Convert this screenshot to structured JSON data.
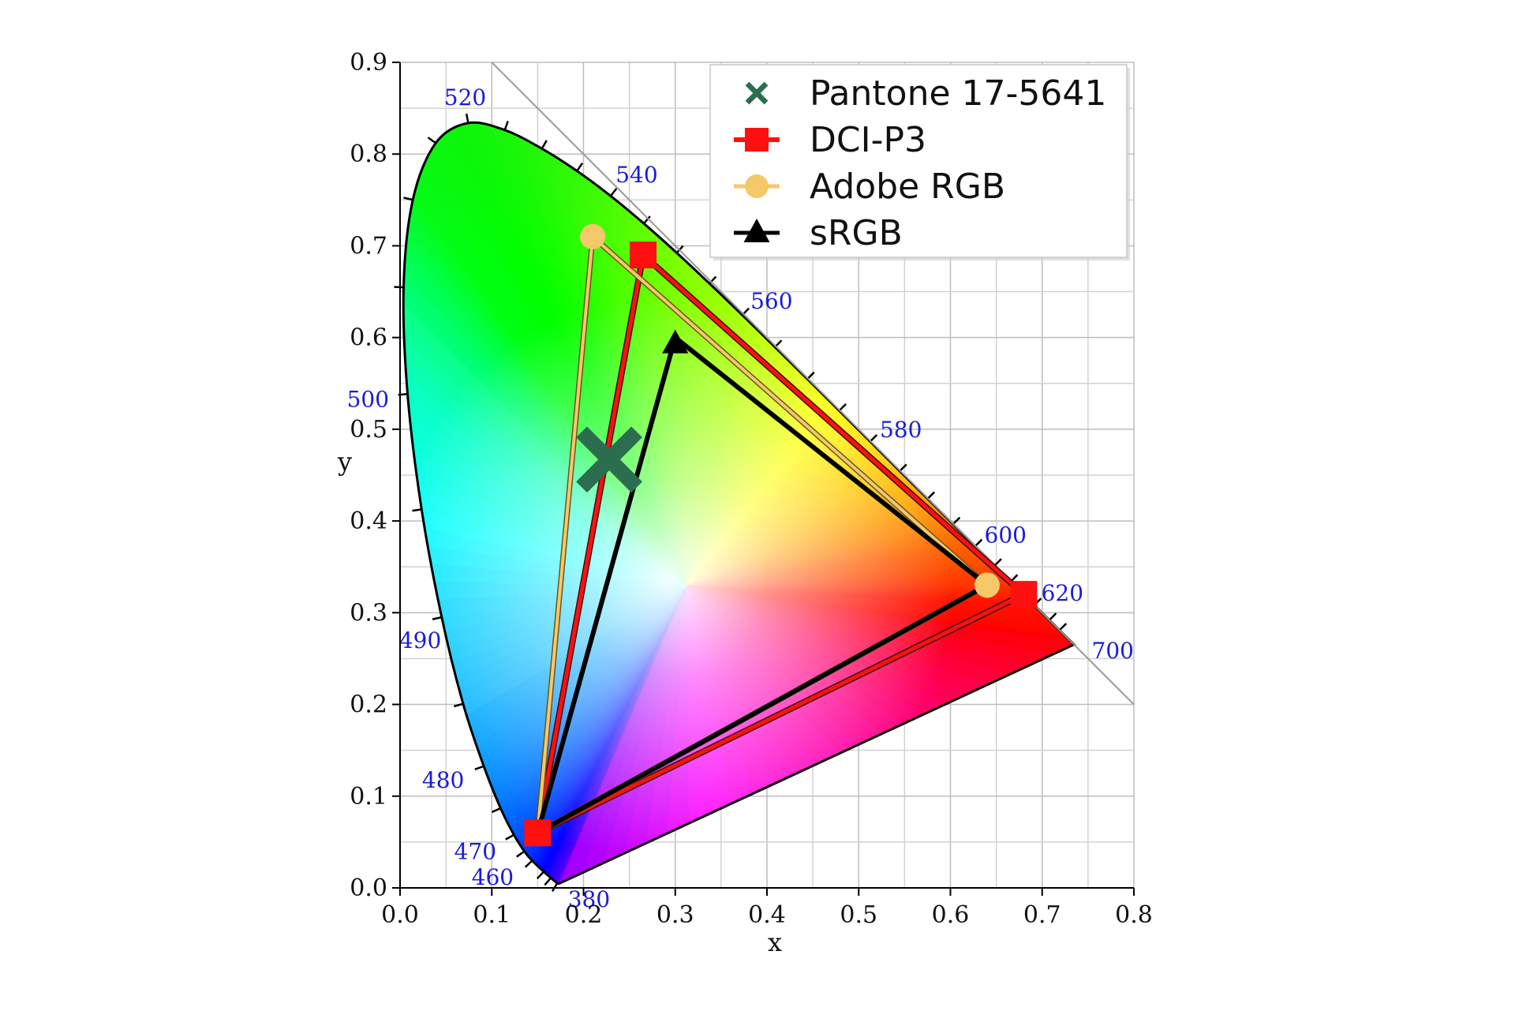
{
  "chart_data": {
    "type": "scatter",
    "title": "",
    "xlabel": "x",
    "ylabel": "y",
    "xlim": [
      0.0,
      0.8
    ],
    "ylim": [
      0.0,
      0.9
    ],
    "x_ticks": [
      "0.0",
      "0.1",
      "0.2",
      "0.3",
      "0.4",
      "0.5",
      "0.6",
      "0.7",
      "0.8"
    ],
    "y_ticks": [
      "0.0",
      "0.1",
      "0.2",
      "0.3",
      "0.4",
      "0.5",
      "0.6",
      "0.7",
      "0.8",
      "0.9"
    ],
    "grid": true,
    "legend_position": "top-right",
    "spectral_locus": [
      {
        "nm": 380,
        "x": 0.1741,
        "y": 0.005
      },
      {
        "nm": 420,
        "x": 0.1714,
        "y": 0.0051
      },
      {
        "nm": 440,
        "x": 0.1644,
        "y": 0.0109
      },
      {
        "nm": 450,
        "x": 0.1566,
        "y": 0.0177
      },
      {
        "nm": 460,
        "x": 0.144,
        "y": 0.0297
      },
      {
        "nm": 465,
        "x": 0.1355,
        "y": 0.0399
      },
      {
        "nm": 470,
        "x": 0.1241,
        "y": 0.0578
      },
      {
        "nm": 475,
        "x": 0.1096,
        "y": 0.0868
      },
      {
        "nm": 480,
        "x": 0.0913,
        "y": 0.1327
      },
      {
        "nm": 485,
        "x": 0.0687,
        "y": 0.2007
      },
      {
        "nm": 490,
        "x": 0.0454,
        "y": 0.295
      },
      {
        "nm": 495,
        "x": 0.0235,
        "y": 0.4127
      },
      {
        "nm": 500,
        "x": 0.0082,
        "y": 0.5384
      },
      {
        "nm": 505,
        "x": 0.0039,
        "y": 0.6548
      },
      {
        "nm": 510,
        "x": 0.0139,
        "y": 0.7502
      },
      {
        "nm": 515,
        "x": 0.0389,
        "y": 0.812
      },
      {
        "nm": 520,
        "x": 0.0743,
        "y": 0.8338
      },
      {
        "nm": 525,
        "x": 0.1142,
        "y": 0.8262
      },
      {
        "nm": 530,
        "x": 0.1547,
        "y": 0.8059
      },
      {
        "nm": 535,
        "x": 0.1929,
        "y": 0.7816
      },
      {
        "nm": 540,
        "x": 0.2296,
        "y": 0.7543
      },
      {
        "nm": 545,
        "x": 0.2658,
        "y": 0.7243
      },
      {
        "nm": 550,
        "x": 0.3016,
        "y": 0.6923
      },
      {
        "nm": 555,
        "x": 0.3373,
        "y": 0.6589
      },
      {
        "nm": 560,
        "x": 0.3731,
        "y": 0.6245
      },
      {
        "nm": 565,
        "x": 0.4087,
        "y": 0.5896
      },
      {
        "nm": 570,
        "x": 0.4441,
        "y": 0.5547
      },
      {
        "nm": 575,
        "x": 0.4788,
        "y": 0.5202
      },
      {
        "nm": 580,
        "x": 0.5125,
        "y": 0.4866
      },
      {
        "nm": 585,
        "x": 0.5448,
        "y": 0.4544
      },
      {
        "nm": 590,
        "x": 0.5752,
        "y": 0.4242
      },
      {
        "nm": 595,
        "x": 0.6029,
        "y": 0.3965
      },
      {
        "nm": 600,
        "x": 0.627,
        "y": 0.3725
      },
      {
        "nm": 605,
        "x": 0.6482,
        "y": 0.3514
      },
      {
        "nm": 610,
        "x": 0.6658,
        "y": 0.334
      },
      {
        "nm": 620,
        "x": 0.6915,
        "y": 0.3083
      },
      {
        "nm": 630,
        "x": 0.7079,
        "y": 0.292
      },
      {
        "nm": 640,
        "x": 0.719,
        "y": 0.2809
      },
      {
        "nm": 660,
        "x": 0.73,
        "y": 0.27
      },
      {
        "nm": 700,
        "x": 0.7347,
        "y": 0.2653
      }
    ],
    "wavelength_labels": [
      "380",
      "460",
      "470",
      "480",
      "490",
      "500",
      "520",
      "540",
      "560",
      "580",
      "600",
      "620",
      "700"
    ],
    "series": [
      {
        "name": "Pantone 17-5641",
        "marker": "x",
        "color": "#2b6e4f",
        "points": [
          {
            "x": 0.228,
            "y": 0.467
          }
        ]
      },
      {
        "name": "DCI-P3",
        "marker": "square",
        "color": "#ff1010",
        "points": [
          {
            "x": 0.68,
            "y": 0.32
          },
          {
            "x": 0.265,
            "y": 0.69
          },
          {
            "x": 0.15,
            "y": 0.06
          }
        ]
      },
      {
        "name": "Adobe RGB",
        "marker": "circle",
        "color": "#f5c96a",
        "points": [
          {
            "x": 0.64,
            "y": 0.33
          },
          {
            "x": 0.21,
            "y": 0.71
          },
          {
            "x": 0.15,
            "y": 0.06
          }
        ]
      },
      {
        "name": "sRGB",
        "marker": "triangle",
        "color": "#000000",
        "points": [
          {
            "x": 0.64,
            "y": 0.33
          },
          {
            "x": 0.3,
            "y": 0.6
          },
          {
            "x": 0.15,
            "y": 0.06
          }
        ]
      }
    ]
  }
}
